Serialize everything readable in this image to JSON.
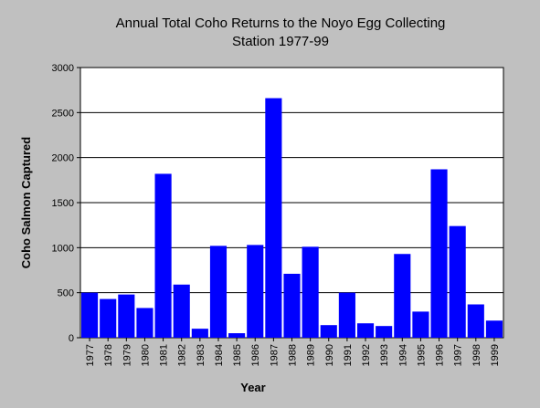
{
  "chart_data": {
    "type": "bar",
    "title_lines": [
      "Annual Total Coho Returns to the Noyo Egg Collecting",
      "Station 1977-99"
    ],
    "xlabel": "Year",
    "ylabel": "Coho Salmon Captured",
    "categories": [
      "1977",
      "1978",
      "1979",
      "1980",
      "1981",
      "1982",
      "1983",
      "1984",
      "1985",
      "1986",
      "1987",
      "1988",
      "1989",
      "1990",
      "1991",
      "1992",
      "1993",
      "1994",
      "1995",
      "1996",
      "1997",
      "1998",
      "1999"
    ],
    "values": [
      500,
      430,
      480,
      330,
      1820,
      590,
      100,
      1020,
      50,
      1030,
      2660,
      710,
      1010,
      140,
      500,
      160,
      130,
      930,
      290,
      1870,
      1240,
      370,
      190
    ],
    "ylim": [
      0,
      3000
    ],
    "yticks": [
      0,
      500,
      1000,
      1500,
      2000,
      2500,
      3000
    ],
    "grid": true,
    "bar_color": "#0000ff",
    "plot_background": "#ffffff",
    "page_background": "#c0c0c0"
  }
}
